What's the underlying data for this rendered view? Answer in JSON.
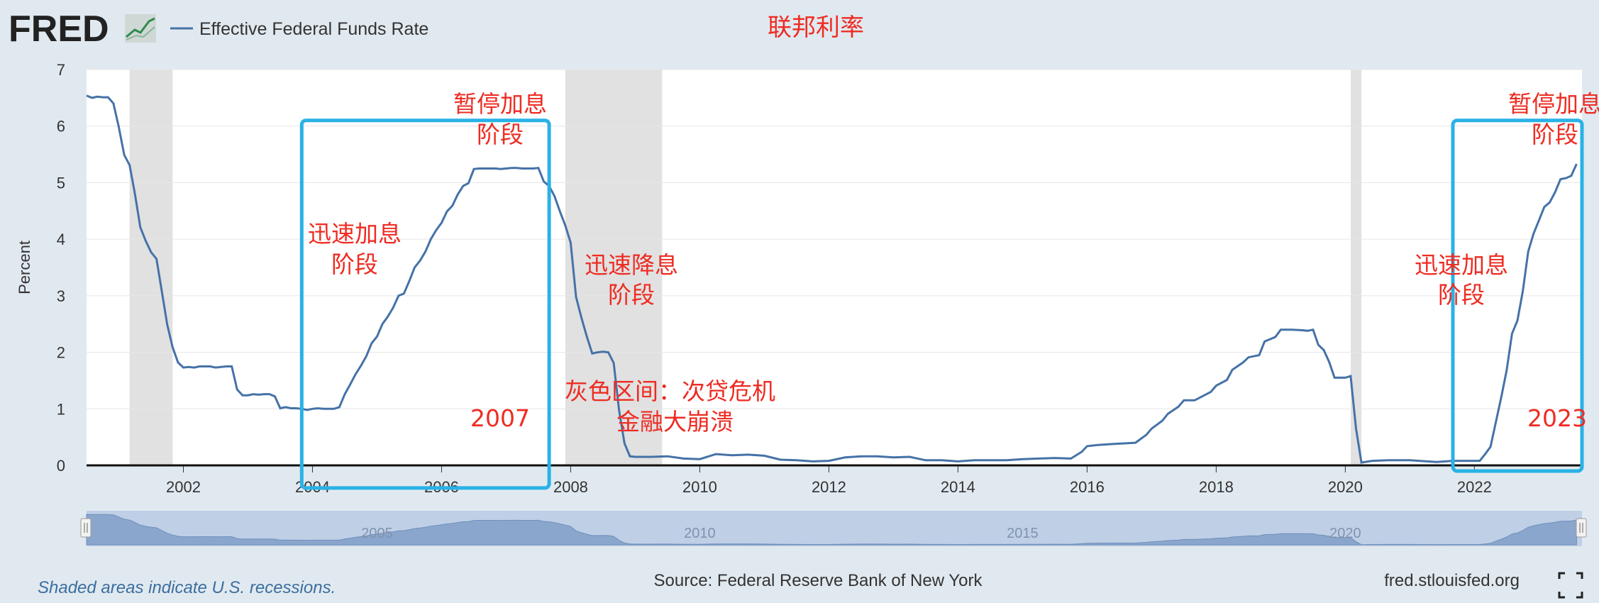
{
  "header": {
    "logo_text": "FRED",
    "legend_label": "Effective Federal Funds Rate",
    "chart_title": "联邦利率"
  },
  "footer": {
    "recession_note": "Shaded areas indicate U.S. recessions.",
    "source": "Source: Federal Reserve Bank of New York",
    "site": "fred.stlouisfed.org"
  },
  "navigator": {
    "labels": [
      "2005",
      "2010",
      "2015",
      "2020"
    ]
  },
  "annotations": {
    "pause_2007_line1": "暂停加息",
    "pause_2007_line2": "阶段",
    "hike_2004_line1": "迅速加息",
    "hike_2004_line2": "阶段",
    "cut_2008_line1": "迅速降息",
    "cut_2008_line2": "阶段",
    "grey_note_line1": "灰色区间：次贷危机",
    "grey_note_line2": "金融大崩溃",
    "year_2007": "2007",
    "pause_2023_line1": "暂停加息",
    "pause_2023_line2": "阶段",
    "hike_2022_line1": "迅速加息",
    "hike_2022_line2": "阶段",
    "year_2023": "2023"
  },
  "colors": {
    "series": "#4572a7",
    "highlight_box": "#29b2e6",
    "annotation": "#ee2c22",
    "recession": "#e1e1e1"
  },
  "chart_data": {
    "type": "line",
    "ylabel": "Percent",
    "xlabel": "",
    "ylim": [
      0,
      7
    ],
    "xlim": [
      "2000-07-01",
      "2023-09-01"
    ],
    "yticks": [
      0,
      1,
      2,
      3,
      4,
      5,
      6,
      7
    ],
    "xticks": [
      "2002",
      "2004",
      "2006",
      "2008",
      "2010",
      "2012",
      "2014",
      "2016",
      "2018",
      "2020",
      "2022"
    ],
    "grid": true,
    "recessions": [
      {
        "start": "2001-03-01",
        "end": "2001-11-01"
      },
      {
        "start": "2007-12-01",
        "end": "2009-06-01"
      },
      {
        "start": "2020-02-01",
        "end": "2020-04-01"
      }
    ],
    "highlight_boxes": [
      {
        "start": "2003-11-01",
        "end": "2007-09-01",
        "ymin": -0.4,
        "ymax": 6.1
      },
      {
        "start": "2021-09-01",
        "end": "2023-09-01",
        "ymin": -0.1,
        "ymax": 6.1
      }
    ],
    "series": [
      {
        "name": "Effective Federal Funds Rate",
        "x": [
          "2000-07",
          "2000-08",
          "2000-09",
          "2000-10",
          "2000-11",
          "2000-12",
          "2001-01",
          "2001-02",
          "2001-03",
          "2001-04",
          "2001-05",
          "2001-06",
          "2001-07",
          "2001-08",
          "2001-09",
          "2001-10",
          "2001-11",
          "2001-12",
          "2002-01",
          "2002-02",
          "2002-03",
          "2002-04",
          "2002-05",
          "2002-06",
          "2002-07",
          "2002-08",
          "2002-09",
          "2002-10",
          "2002-11",
          "2002-12",
          "2003-01",
          "2003-02",
          "2003-03",
          "2003-04",
          "2003-05",
          "2003-06",
          "2003-07",
          "2003-08",
          "2003-09",
          "2003-10",
          "2003-11",
          "2003-12",
          "2004-01",
          "2004-02",
          "2004-03",
          "2004-04",
          "2004-05",
          "2004-06",
          "2004-07",
          "2004-08",
          "2004-09",
          "2004-10",
          "2004-11",
          "2004-12",
          "2005-01",
          "2005-02",
          "2005-03",
          "2005-04",
          "2005-05",
          "2005-06",
          "2005-07",
          "2005-08",
          "2005-09",
          "2005-10",
          "2005-11",
          "2005-12",
          "2006-01",
          "2006-02",
          "2006-03",
          "2006-04",
          "2006-05",
          "2006-06",
          "2006-07",
          "2006-08",
          "2006-09",
          "2006-10",
          "2006-11",
          "2006-12",
          "2007-01",
          "2007-02",
          "2007-03",
          "2007-04",
          "2007-05",
          "2007-06",
          "2007-07",
          "2007-08",
          "2007-09",
          "2007-10",
          "2007-11",
          "2007-12",
          "2008-01",
          "2008-02",
          "2008-03",
          "2008-04",
          "2008-05",
          "2008-06",
          "2008-07",
          "2008-08",
          "2008-09",
          "2008-10",
          "2008-11",
          "2008-12",
          "2009-01",
          "2009-04",
          "2009-07",
          "2009-10",
          "2010-01",
          "2010-04",
          "2010-07",
          "2010-10",
          "2011-01",
          "2011-04",
          "2011-07",
          "2011-10",
          "2012-01",
          "2012-04",
          "2012-07",
          "2012-10",
          "2013-01",
          "2013-04",
          "2013-07",
          "2013-10",
          "2014-01",
          "2014-04",
          "2014-07",
          "2014-10",
          "2015-01",
          "2015-04",
          "2015-07",
          "2015-10",
          "2015-12",
          "2016-01",
          "2016-03",
          "2016-06",
          "2016-10",
          "2016-12",
          "2017-01",
          "2017-03",
          "2017-04",
          "2017-06",
          "2017-07",
          "2017-09",
          "2017-12",
          "2018-01",
          "2018-03",
          "2018-04",
          "2018-06",
          "2018-07",
          "2018-09",
          "2018-10",
          "2018-12",
          "2019-01",
          "2019-03",
          "2019-05",
          "2019-06",
          "2019-07",
          "2019-08",
          "2019-09",
          "2019-10",
          "2019-11",
          "2019-12",
          "2020-01",
          "2020-02",
          "2020-03",
          "2020-04",
          "2020-06",
          "2020-09",
          "2021-01",
          "2021-06",
          "2021-09",
          "2021-12",
          "2022-02",
          "2022-03",
          "2022-04",
          "2022-05",
          "2022-06",
          "2022-07",
          "2022-08",
          "2022-09",
          "2022-10",
          "2022-11",
          "2022-12",
          "2023-01",
          "2023-02",
          "2023-03",
          "2023-04",
          "2023-05",
          "2023-06",
          "2023-07",
          "2023-08"
        ],
        "y": [
          6.54,
          6.5,
          6.52,
          6.51,
          6.51,
          6.4,
          5.98,
          5.49,
          5.31,
          4.8,
          4.21,
          3.97,
          3.77,
          3.65,
          3.07,
          2.49,
          2.09,
          1.82,
          1.73,
          1.74,
          1.73,
          1.75,
          1.75,
          1.75,
          1.73,
          1.74,
          1.75,
          1.75,
          1.34,
          1.24,
          1.24,
          1.26,
          1.25,
          1.26,
          1.26,
          1.22,
          1.01,
          1.03,
          1.01,
          1.01,
          1.0,
          0.98,
          1.0,
          1.01,
          1.0,
          1.0,
          1.0,
          1.03,
          1.26,
          1.43,
          1.61,
          1.76,
          1.93,
          2.16,
          2.28,
          2.5,
          2.63,
          2.79,
          3.0,
          3.04,
          3.26,
          3.5,
          3.62,
          3.78,
          4.0,
          4.16,
          4.29,
          4.49,
          4.59,
          4.79,
          4.94,
          4.99,
          5.24,
          5.25,
          5.25,
          5.25,
          5.25,
          5.24,
          5.25,
          5.26,
          5.26,
          5.25,
          5.25,
          5.25,
          5.26,
          5.02,
          4.94,
          4.76,
          4.49,
          4.24,
          3.94,
          2.98,
          2.61,
          2.28,
          1.98,
          2.0,
          2.01,
          2.0,
          1.81,
          0.97,
          0.39,
          0.16,
          0.15,
          0.15,
          0.16,
          0.12,
          0.11,
          0.2,
          0.18,
          0.19,
          0.17,
          0.1,
          0.09,
          0.07,
          0.08,
          0.14,
          0.16,
          0.16,
          0.14,
          0.15,
          0.09,
          0.09,
          0.07,
          0.09,
          0.09,
          0.09,
          0.11,
          0.12,
          0.13,
          0.12,
          0.24,
          0.34,
          0.36,
          0.38,
          0.4,
          0.54,
          0.65,
          0.79,
          0.91,
          1.04,
          1.15,
          1.15,
          1.3,
          1.41,
          1.51,
          1.69,
          1.82,
          1.91,
          1.95,
          2.19,
          2.27,
          2.4,
          2.4,
          2.39,
          2.38,
          2.4,
          2.13,
          2.04,
          1.83,
          1.55,
          1.55,
          1.55,
          1.58,
          0.65,
          0.05,
          0.08,
          0.09,
          0.09,
          0.06,
          0.08,
          0.08,
          0.08,
          0.2,
          0.33,
          0.77,
          1.21,
          1.68,
          2.33,
          2.56,
          3.08,
          3.78,
          4.1,
          4.33,
          4.57,
          4.65,
          4.83,
          5.06,
          5.08,
          5.12,
          5.33
        ]
      }
    ]
  }
}
